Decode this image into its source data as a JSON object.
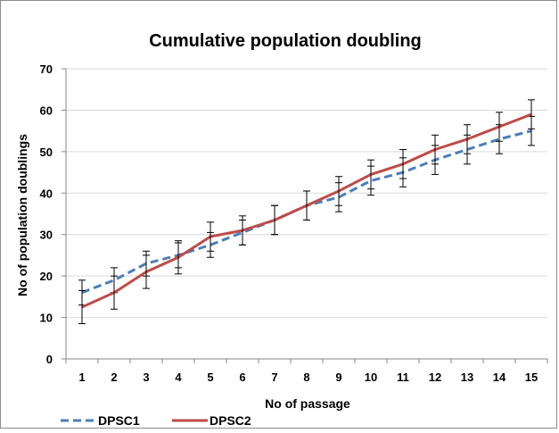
{
  "chart_data": {
    "type": "line",
    "title": "Cumulative population doubling",
    "xlabel": "No of passage",
    "ylabel": "No of population doublings",
    "x": [
      1,
      2,
      3,
      4,
      5,
      6,
      7,
      8,
      9,
      10,
      11,
      12,
      13,
      14,
      15
    ],
    "ylim": [
      0,
      70
    ],
    "yticks": [
      0,
      10,
      20,
      30,
      40,
      50,
      60,
      70
    ],
    "grid": true,
    "legend_position": "bottom-left",
    "series": [
      {
        "name": "DPSC1",
        "color": "#4a7ebb",
        "dash": true,
        "values": [
          16,
          19,
          23,
          25,
          27.5,
          30.5,
          33.5,
          37,
          39,
          43,
          45,
          48,
          50.5,
          53,
          55
        ],
        "error": [
          3,
          3,
          3,
          3,
          3,
          3,
          3.5,
          3.5,
          3.5,
          3.5,
          3.5,
          3.5,
          3.5,
          3.5,
          3.5
        ]
      },
      {
        "name": "DPSC2",
        "color": "#be4b48",
        "dash": false,
        "values": [
          12.5,
          16,
          21,
          24.5,
          29.5,
          31,
          33.5,
          37,
          40.5,
          44.5,
          47,
          50.5,
          53,
          56,
          59
        ],
        "error": [
          4,
          4,
          4,
          4,
          3.5,
          3.5,
          3.5,
          3.5,
          3.5,
          3.5,
          3.5,
          3.5,
          3.5,
          3.5,
          3.5
        ]
      }
    ]
  }
}
